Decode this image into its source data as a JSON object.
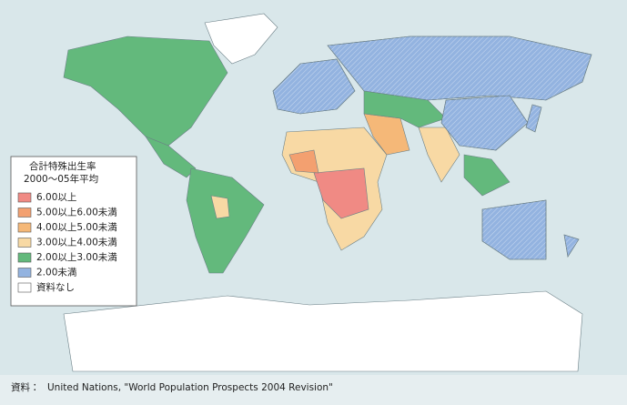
{
  "legend": {
    "title": [
      "合計特殊出生率",
      "2000～05年平均"
    ],
    "items": [
      {
        "label": "6.00以上",
        "color": "#f08a84"
      },
      {
        "label": "5.00以上6.00未満",
        "color": "#f3a070"
      },
      {
        "label": "4.00以上5.00未満",
        "color": "#f5b878"
      },
      {
        "label": "3.00以上4.00未満",
        "color": "#f8d9a4"
      },
      {
        "label": "2.00以上3.00未満",
        "color": "#63b97c"
      },
      {
        "label": "2.00未満",
        "color": "#93b3e0"
      },
      {
        "label": "資料なし",
        "color": "#ffffff"
      }
    ]
  },
  "source": {
    "prefix": "資料：",
    "text": "United Nations, \"World Population Prospects 2004 Revision\""
  }
}
